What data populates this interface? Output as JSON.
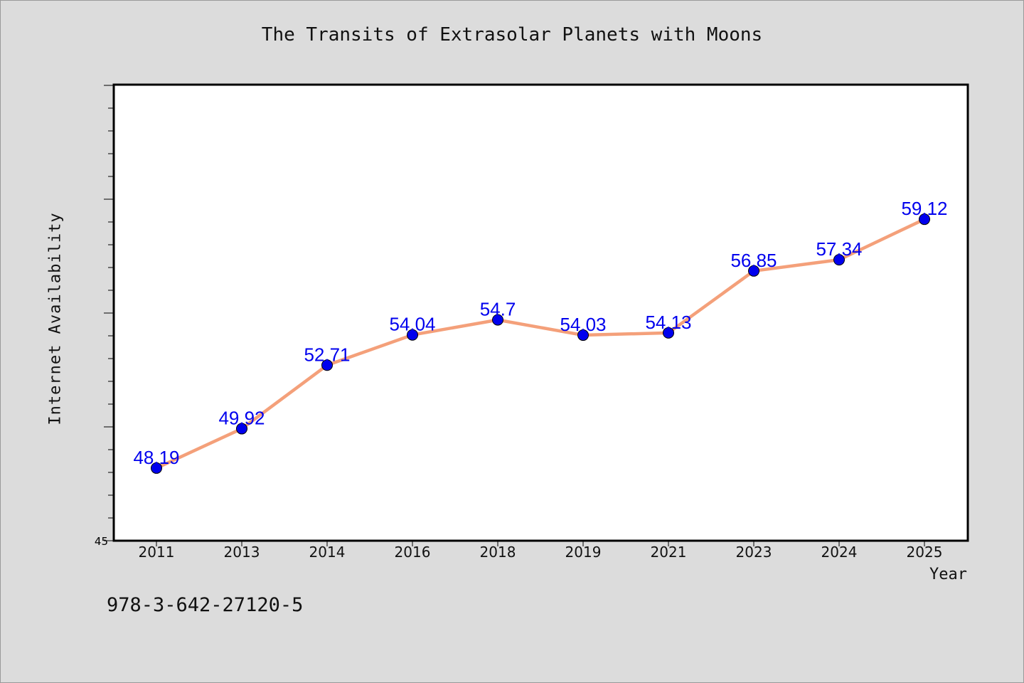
{
  "chart_data": {
    "type": "line",
    "title": "The Transits of Extrasolar Planets with Moons",
    "xlabel": "Year",
    "ylabel": "Internet Availability",
    "categories": [
      "2011",
      "2013",
      "2014",
      "2016",
      "2018",
      "2019",
      "2021",
      "2023",
      "2024",
      "2025"
    ],
    "series": [
      {
        "values": [
          48.19,
          49.92,
          52.71,
          54.04,
          54.7,
          54.03,
          54.13,
          56.85,
          57.34,
          59.12
        ],
        "data_labels": [
          "48.19",
          "49.92",
          "52.71",
          "54.04",
          "54.7",
          "54.03",
          "54.13",
          "56.85",
          "57.34",
          "59.12"
        ]
      }
    ],
    "ylim": [
      45,
      65
    ],
    "y_tick_labels": [
      "45"
    ],
    "grid": false,
    "legend": "none",
    "colors": {
      "line": "#f4a07a",
      "marker": "#0000ee",
      "marker_edge": "#000000",
      "data_label": "#0000ee",
      "plot_background": "#ffffff",
      "figure_background": "#dcdcdc"
    }
  },
  "footnote": "978-3-642-27120-5"
}
